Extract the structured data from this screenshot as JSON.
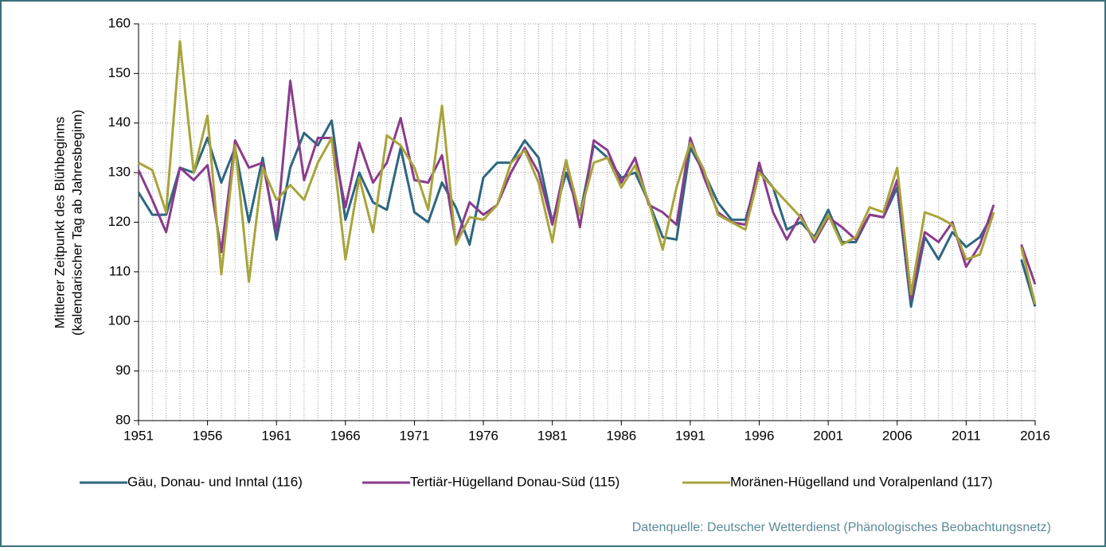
{
  "chart_data": {
    "type": "line",
    "y_label": [
      "Mittlerer Zeitpunkt des  Blühbeginns",
      "(kalendarischer Tag ab Jahresbeginn)"
    ],
    "source": "Datenquelle: Deutscher Wetterdienst  (Phänologisches Beobachtungsnetz)",
    "x": [
      1951,
      1952,
      1953,
      1954,
      1955,
      1956,
      1957,
      1958,
      1959,
      1960,
      1961,
      1962,
      1963,
      1964,
      1965,
      1966,
      1967,
      1968,
      1969,
      1970,
      1971,
      1972,
      1973,
      1974,
      1975,
      1976,
      1977,
      1978,
      1979,
      1980,
      1981,
      1982,
      1983,
      1984,
      1985,
      1986,
      1987,
      1988,
      1989,
      1990,
      1991,
      1992,
      1993,
      1994,
      1995,
      1996,
      1997,
      1998,
      1999,
      2000,
      2001,
      2002,
      2003,
      2004,
      2005,
      2006,
      2007,
      2008,
      2009,
      2010,
      2011,
      2012,
      2013,
      2014,
      2015,
      2016
    ],
    "xlim": [
      1951,
      2016
    ],
    "xticks": [
      1951,
      1956,
      1961,
      1966,
      1971,
      1976,
      1981,
      1986,
      1991,
      1996,
      2001,
      2006,
      2011,
      2016
    ],
    "ylim": [
      80,
      160
    ],
    "yticks": [
      80,
      90,
      100,
      110,
      120,
      130,
      140,
      150,
      160
    ],
    "grid": true,
    "legend": "bottom",
    "series": [
      {
        "name": "Gäu, Donau- und Inntal (116)",
        "color": "#2e6680",
        "values": [
          126,
          121.5,
          121.5,
          131,
          130,
          137,
          128,
          135,
          120,
          133,
          116.5,
          131,
          138,
          135.5,
          140.5,
          120.5,
          130,
          124,
          122.5,
          135,
          122,
          120,
          128,
          123,
          115.5,
          129,
          132,
          132,
          136.5,
          133,
          120,
          130,
          121.5,
          135.5,
          133,
          129,
          130,
          124,
          117,
          116.5,
          135,
          130,
          124,
          120.5,
          120.5,
          130.5,
          127,
          118.5,
          120,
          117,
          122.5,
          116,
          116,
          121.5,
          121,
          127,
          103,
          117,
          112.5,
          118,
          115,
          117,
          122,
          null,
          112.5,
          103
        ]
      },
      {
        "name": "Tertiär-Hügelland Donau-Süd (115)",
        "color": "#8a3c8c",
        "values": [
          130.5,
          124.5,
          118,
          131,
          128.5,
          131.5,
          114,
          136.5,
          131,
          132,
          118,
          148.5,
          128.5,
          137,
          137,
          123,
          136,
          128,
          132,
          141,
          128.5,
          128,
          133.5,
          116,
          124,
          121.5,
          123.5,
          130,
          135,
          130,
          119.5,
          132.5,
          119,
          136.5,
          134.5,
          128,
          133,
          123.5,
          122,
          119.5,
          137,
          129,
          122,
          120,
          119.5,
          132,
          122,
          116.5,
          121.5,
          116,
          121,
          119,
          116.5,
          121.5,
          121,
          128.5,
          104.5,
          118,
          116,
          120,
          111,
          115.5,
          123.5,
          null,
          115.5,
          107.5
        ]
      },
      {
        "name": "Moränen-Hügelland und Voralpenland (117)",
        "color": "#a8a43a",
        "values": [
          132,
          130.5,
          122,
          156.5,
          130,
          141.5,
          109.5,
          135.5,
          108,
          131,
          124.5,
          127.5,
          124.5,
          132,
          137,
          112.5,
          129,
          118,
          137.5,
          135.5,
          131,
          122.5,
          143.5,
          115.5,
          121,
          120.5,
          123.5,
          132,
          134.5,
          128,
          116,
          132.5,
          121.5,
          132,
          133,
          127,
          131.5,
          124,
          114.5,
          127,
          136,
          130.5,
          121.5,
          120,
          118.5,
          130,
          127,
          124,
          121,
          116.5,
          121.5,
          115.5,
          117,
          123,
          122,
          131,
          105.5,
          122,
          121,
          119.5,
          112.5,
          113.5,
          122,
          null,
          115,
          103.5
        ]
      }
    ]
  }
}
